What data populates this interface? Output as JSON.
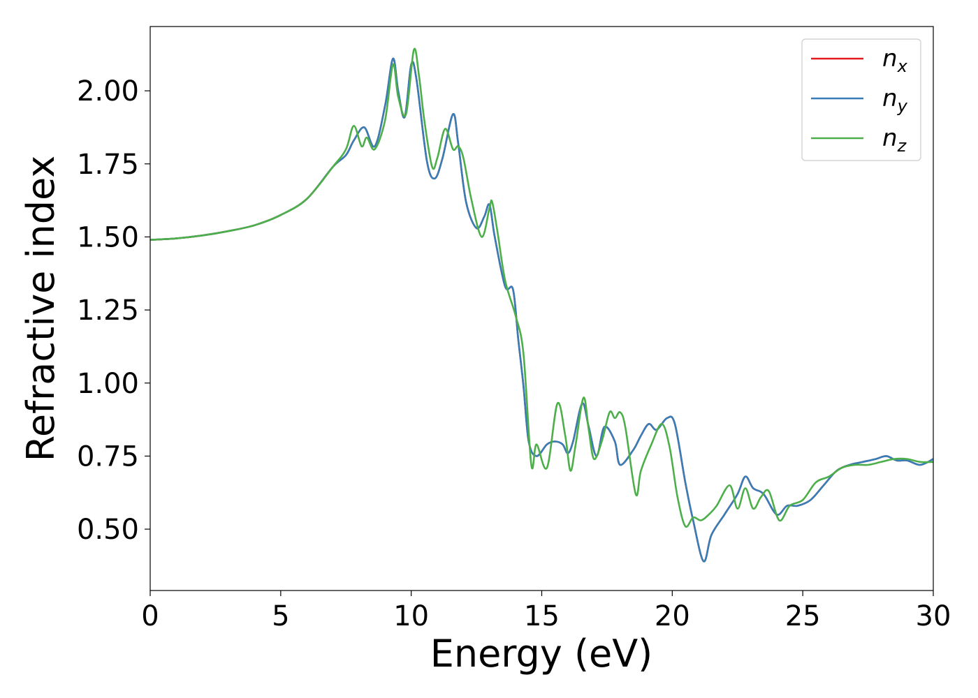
{
  "chart_data": {
    "type": "line",
    "xlabel": "Energy (eV)",
    "ylabel": "Refractive index",
    "xlim": [
      0,
      30
    ],
    "ylim": [
      0.29,
      2.22
    ],
    "x_ticks": [
      "0",
      "5",
      "10",
      "15",
      "20",
      "25",
      "30"
    ],
    "y_ticks": [
      "0.50",
      "0.75",
      "1.00",
      "1.25",
      "1.50",
      "1.75",
      "2.00"
    ],
    "grid": false,
    "legend_position": "top-right",
    "legend": [
      {
        "base": "n",
        "sub": "x",
        "color": "#e41a1c"
      },
      {
        "base": "n",
        "sub": "y",
        "color": "#377eb8"
      },
      {
        "base": "n",
        "sub": "z",
        "color": "#4daf4a"
      }
    ],
    "series": [
      {
        "color": "#e41a1c",
        "x": [
          0,
          1,
          2,
          3,
          4,
          5,
          6,
          7,
          7.5,
          7.8,
          8.2,
          8.6,
          9.0,
          9.3,
          9.5,
          9.75,
          10.0,
          10.2,
          10.6,
          10.9,
          11.2,
          11.6,
          11.8,
          12.1,
          12.5,
          12.8,
          13.0,
          13.2,
          13.6,
          13.9,
          14.1,
          14.3,
          14.5,
          14.8,
          15.2,
          15.5,
          15.8,
          16.0,
          16.2,
          16.55,
          16.8,
          17.1,
          17.4,
          17.8,
          18.0,
          18.5,
          18.8,
          19.1,
          19.4,
          19.8,
          20.1,
          20.5,
          20.8,
          21.2,
          21.5,
          22.0,
          22.5,
          22.8,
          23.1,
          23.5,
          24.0,
          24.4,
          24.8,
          25.3,
          25.8,
          26.3,
          26.8,
          27.3,
          27.8,
          28.2,
          28.6,
          29.0,
          29.5,
          30.0
        ],
        "y": [
          1.49,
          1.495,
          1.505,
          1.52,
          1.54,
          1.575,
          1.63,
          1.74,
          1.78,
          1.83,
          1.875,
          1.81,
          1.95,
          2.11,
          2.0,
          1.91,
          2.09,
          2.04,
          1.76,
          1.7,
          1.77,
          1.92,
          1.82,
          1.62,
          1.53,
          1.57,
          1.61,
          1.5,
          1.33,
          1.32,
          1.15,
          0.99,
          0.8,
          0.75,
          0.79,
          0.8,
          0.79,
          0.76,
          0.8,
          0.93,
          0.85,
          0.75,
          0.85,
          0.8,
          0.72,
          0.77,
          0.82,
          0.86,
          0.84,
          0.88,
          0.86,
          0.66,
          0.53,
          0.39,
          0.48,
          0.55,
          0.62,
          0.68,
          0.64,
          0.62,
          0.55,
          0.58,
          0.58,
          0.6,
          0.65,
          0.7,
          0.72,
          0.73,
          0.74,
          0.75,
          0.735,
          0.735,
          0.72,
          0.74
        ]
      },
      {
        "color": "#377eb8",
        "x": [
          0,
          1,
          2,
          3,
          4,
          5,
          6,
          7,
          7.5,
          7.8,
          8.2,
          8.6,
          9.0,
          9.3,
          9.5,
          9.75,
          10.0,
          10.2,
          10.6,
          10.9,
          11.2,
          11.6,
          11.8,
          12.1,
          12.5,
          12.8,
          13.0,
          13.2,
          13.6,
          13.9,
          14.1,
          14.3,
          14.5,
          14.8,
          15.2,
          15.5,
          15.8,
          16.0,
          16.2,
          16.55,
          16.8,
          17.1,
          17.4,
          17.8,
          18.0,
          18.5,
          18.8,
          19.1,
          19.4,
          19.8,
          20.1,
          20.5,
          20.8,
          21.2,
          21.5,
          22.0,
          22.5,
          22.8,
          23.1,
          23.5,
          24.0,
          24.4,
          24.8,
          25.3,
          25.8,
          26.3,
          26.8,
          27.3,
          27.8,
          28.2,
          28.6,
          29.0,
          29.5,
          30.0
        ],
        "y": [
          1.49,
          1.495,
          1.505,
          1.52,
          1.54,
          1.575,
          1.63,
          1.74,
          1.78,
          1.83,
          1.875,
          1.81,
          1.95,
          2.11,
          2.0,
          1.91,
          2.09,
          2.04,
          1.76,
          1.7,
          1.77,
          1.92,
          1.82,
          1.62,
          1.53,
          1.57,
          1.61,
          1.5,
          1.33,
          1.32,
          1.15,
          0.99,
          0.8,
          0.75,
          0.79,
          0.8,
          0.79,
          0.76,
          0.8,
          0.93,
          0.85,
          0.75,
          0.85,
          0.8,
          0.72,
          0.77,
          0.82,
          0.86,
          0.84,
          0.88,
          0.86,
          0.66,
          0.53,
          0.39,
          0.48,
          0.55,
          0.62,
          0.68,
          0.64,
          0.62,
          0.55,
          0.58,
          0.58,
          0.6,
          0.65,
          0.7,
          0.72,
          0.73,
          0.74,
          0.75,
          0.735,
          0.735,
          0.72,
          0.74
        ]
      },
      {
        "color": "#4daf4a",
        "x": [
          0,
          1,
          2,
          3,
          4,
          5,
          6,
          7,
          7.5,
          7.8,
          8.1,
          8.3,
          8.6,
          9.0,
          9.3,
          9.5,
          9.8,
          10.1,
          10.3,
          10.5,
          10.8,
          11.0,
          11.3,
          11.6,
          11.8,
          12.0,
          12.3,
          12.7,
          13.0,
          13.1,
          13.3,
          13.6,
          14.0,
          14.3,
          14.6,
          14.8,
          15.2,
          15.6,
          15.9,
          16.1,
          16.3,
          16.6,
          16.8,
          17.0,
          17.3,
          17.6,
          17.8,
          18.0,
          18.2,
          18.6,
          18.8,
          19.2,
          19.6,
          19.9,
          20.2,
          20.5,
          20.8,
          21.1,
          21.4,
          21.7,
          22.2,
          22.5,
          22.8,
          23.1,
          23.4,
          23.7,
          24.1,
          24.5,
          25.0,
          25.5,
          26.0,
          26.5,
          27.0,
          27.5,
          28.0,
          28.5,
          29.0,
          29.5,
          30.0
        ],
        "y": [
          1.49,
          1.495,
          1.505,
          1.52,
          1.54,
          1.575,
          1.63,
          1.74,
          1.8,
          1.88,
          1.81,
          1.84,
          1.8,
          1.9,
          2.09,
          1.98,
          1.92,
          2.14,
          2.05,
          1.9,
          1.74,
          1.77,
          1.87,
          1.8,
          1.81,
          1.77,
          1.63,
          1.5,
          1.6,
          1.62,
          1.52,
          1.35,
          1.23,
          1.1,
          0.72,
          0.79,
          0.71,
          0.93,
          0.82,
          0.7,
          0.79,
          0.95,
          0.84,
          0.74,
          0.8,
          0.9,
          0.88,
          0.9,
          0.85,
          0.62,
          0.7,
          0.79,
          0.86,
          0.78,
          0.61,
          0.51,
          0.54,
          0.53,
          0.55,
          0.58,
          0.65,
          0.57,
          0.64,
          0.57,
          0.61,
          0.63,
          0.53,
          0.58,
          0.6,
          0.66,
          0.68,
          0.71,
          0.72,
          0.72,
          0.73,
          0.74,
          0.74,
          0.73,
          0.73
        ]
      }
    ]
  }
}
